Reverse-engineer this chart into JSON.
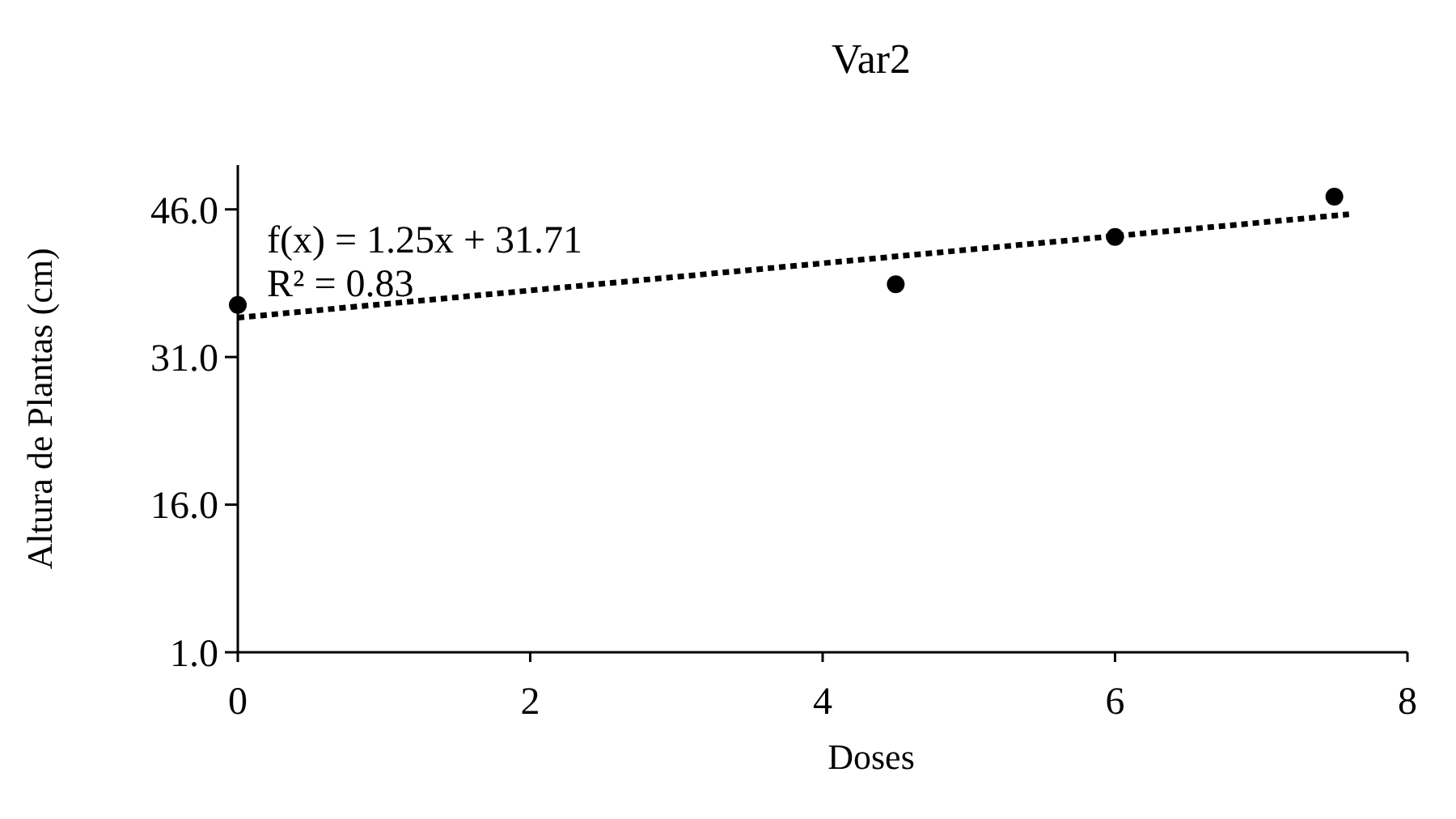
{
  "chart_data": {
    "type": "scatter",
    "title": "Var2",
    "xlabel": "Doses",
    "ylabel": "Altura de Plantas (cm)",
    "xlim": [
      0,
      8
    ],
    "xticks": [
      0,
      2,
      4,
      6,
      8
    ],
    "ylim": [
      1,
      50.5
    ],
    "yticks": [
      {
        "value": 1,
        "label": "1.0"
      },
      {
        "value": 16,
        "label": "16.0"
      },
      {
        "value": 31,
        "label": "31.0"
      },
      {
        "value": 46,
        "label": "46.0"
      }
    ],
    "grid": false,
    "marker": "circle",
    "annotations": [
      "f(x) = 1.25x + 31.71",
      "R² = 0.83"
    ],
    "series": [
      {
        "color": "#000000",
        "x": [
          0,
          4.5,
          6,
          7.5
        ],
        "values": [
          36.3,
          38.4,
          43.2,
          47.3
        ]
      },
      {
        "type": "line",
        "color": "#000000",
        "line_style": "dotted",
        "marker": "none",
        "x": [
          0,
          7.6
        ],
        "values": [
          35.0,
          45.5
        ]
      }
    ]
  }
}
